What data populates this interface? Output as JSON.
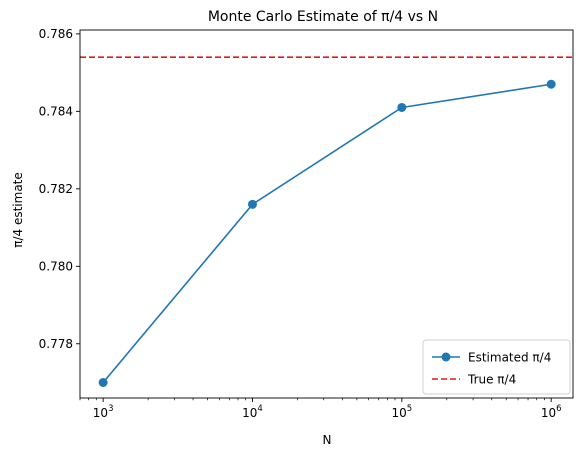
{
  "chart_data": {
    "type": "line",
    "title": "Monte Carlo Estimate of π/4 vs N",
    "xlabel": "N",
    "ylabel": "π/4 estimate",
    "xscale": "log",
    "xlim": [
      700,
      1400000
    ],
    "ylim": [
      0.7766,
      0.7861
    ],
    "x": [
      1000,
      10000,
      100000,
      1000000
    ],
    "x_tick_labels": [
      {
        "base": "10",
        "exp": "3"
      },
      {
        "base": "10",
        "exp": "4"
      },
      {
        "base": "10",
        "exp": "5"
      },
      {
        "base": "10",
        "exp": "6"
      }
    ],
    "y_ticks": [
      0.778,
      0.78,
      0.782,
      0.784,
      0.786
    ],
    "y_tick_labels": [
      "0.778",
      "0.780",
      "0.782",
      "0.784",
      "0.786"
    ],
    "series": [
      {
        "name": "Estimated π/4",
        "style": "line-with-circle-markers",
        "color": "#1f77b4",
        "values": [
          0.777,
          0.7816,
          0.7841,
          0.7847
        ]
      },
      {
        "name": "True π/4",
        "style": "dashed-horizontal",
        "color": "#e31a1c",
        "value": 0.785398
      }
    ],
    "legend_position": "lower-right",
    "grid": false
  }
}
